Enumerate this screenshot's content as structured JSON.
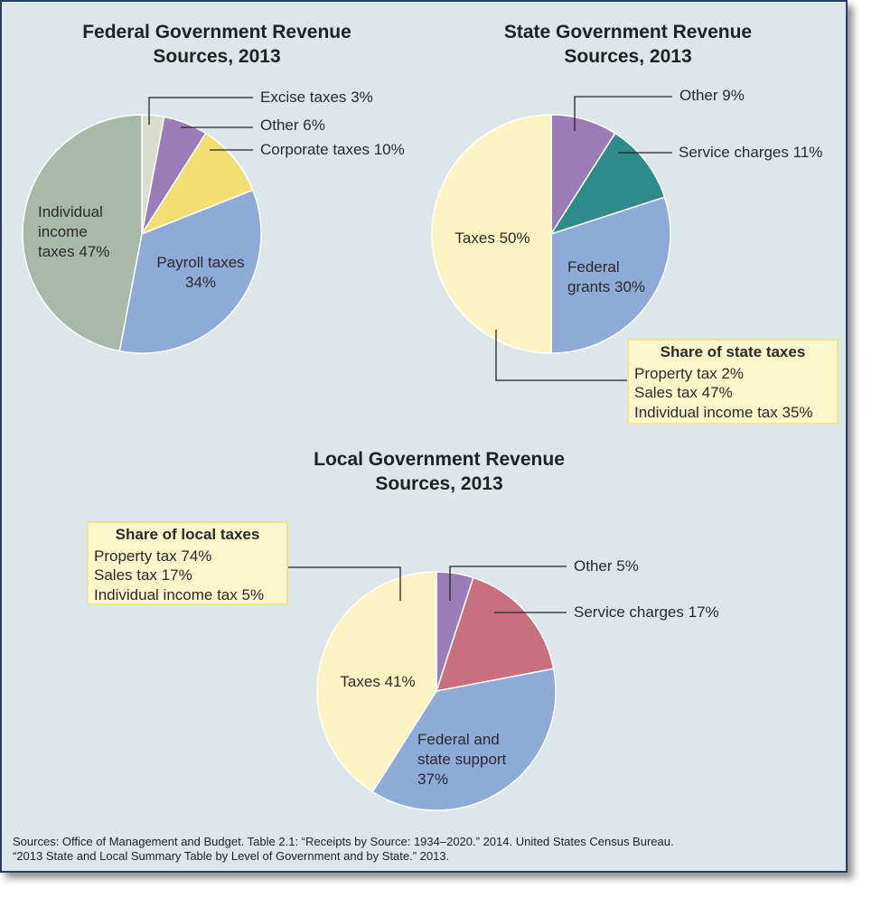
{
  "chart_data": [
    {
      "type": "pie",
      "title": "Federal Government Revenue Sources, 2013",
      "categories": [
        "Excise taxes",
        "Other",
        "Corporate taxes",
        "Payroll taxes",
        "Individual income taxes"
      ],
      "values": [
        3,
        6,
        10,
        34,
        47
      ],
      "value_labels": [
        "3%",
        "6%",
        "10%",
        "34%",
        "47%"
      ],
      "colors": [
        "#d9dccf",
        "#9b7cb6",
        "#f1e071",
        "#8eaad7",
        "#a8b9aa"
      ]
    },
    {
      "type": "pie",
      "title": "State Government Revenue Sources, 2013",
      "categories": [
        "Other",
        "Service charges",
        "Federal grants",
        "Taxes"
      ],
      "values": [
        9,
        11,
        30,
        50
      ],
      "value_labels": [
        "9%",
        "11%",
        "30%",
        "50%"
      ],
      "colors": [
        "#9b7cb6",
        "#2f8a8b",
        "#8eaad7",
        "#fbf3c2"
      ],
      "inset": {
        "title": "Share of state taxes",
        "categories": [
          "Property tax",
          "Sales tax",
          "Individual income tax"
        ],
        "values": [
          2,
          47,
          35
        ],
        "value_labels": [
          "2%",
          "47%",
          "35%"
        ]
      }
    },
    {
      "type": "pie",
      "title": "Local Government Revenue Sources, 2013",
      "categories": [
        "Other",
        "Service charges",
        "Federal and state support",
        "Taxes"
      ],
      "values": [
        5,
        17,
        37,
        41
      ],
      "value_labels": [
        "5%",
        "17%",
        "37%",
        "41%"
      ],
      "colors": [
        "#9b7cb6",
        "#c9707f",
        "#8eaad7",
        "#fbf3c2"
      ],
      "inset": {
        "title": "Share of local taxes",
        "categories": [
          "Property tax",
          "Sales tax",
          "Individual income tax"
        ],
        "values": [
          74,
          17,
          5
        ],
        "value_labels": [
          "74%",
          "17%",
          "5%"
        ]
      }
    }
  ],
  "source": [
    "Sources: Office of Management and Budget. Table 2.1: “Receipts by Source: 1934–2020.” 2014. United States Census Bureau.",
    "“2013 State and Local Summary Table by Level of Government and by State.” 2013."
  ]
}
